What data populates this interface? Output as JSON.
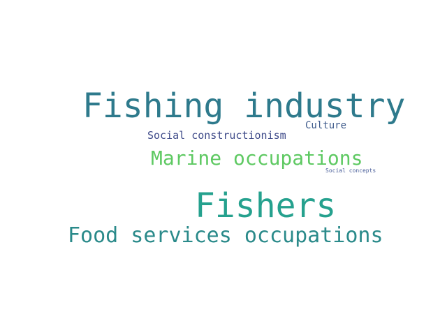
{
  "wordcloud": {
    "words": [
      {
        "id": "w-fishing-industry",
        "text": "Fishing industry",
        "color": "#2e7a8c"
      },
      {
        "id": "w-culture",
        "text": "Culture",
        "color": "#3f5b8c"
      },
      {
        "id": "w-social-constr",
        "text": "Social constructionism",
        "color": "#3e4a89"
      },
      {
        "id": "w-marine",
        "text": "Marine occupations",
        "color": "#5ec962"
      },
      {
        "id": "w-social-concepts",
        "text": "Social concepts",
        "color": "#4a5f9a"
      },
      {
        "id": "w-fishers",
        "text": "Fishers",
        "color": "#25a18e"
      },
      {
        "id": "w-food-services",
        "text": "Food services occupations",
        "color": "#2a8a8a"
      }
    ]
  }
}
